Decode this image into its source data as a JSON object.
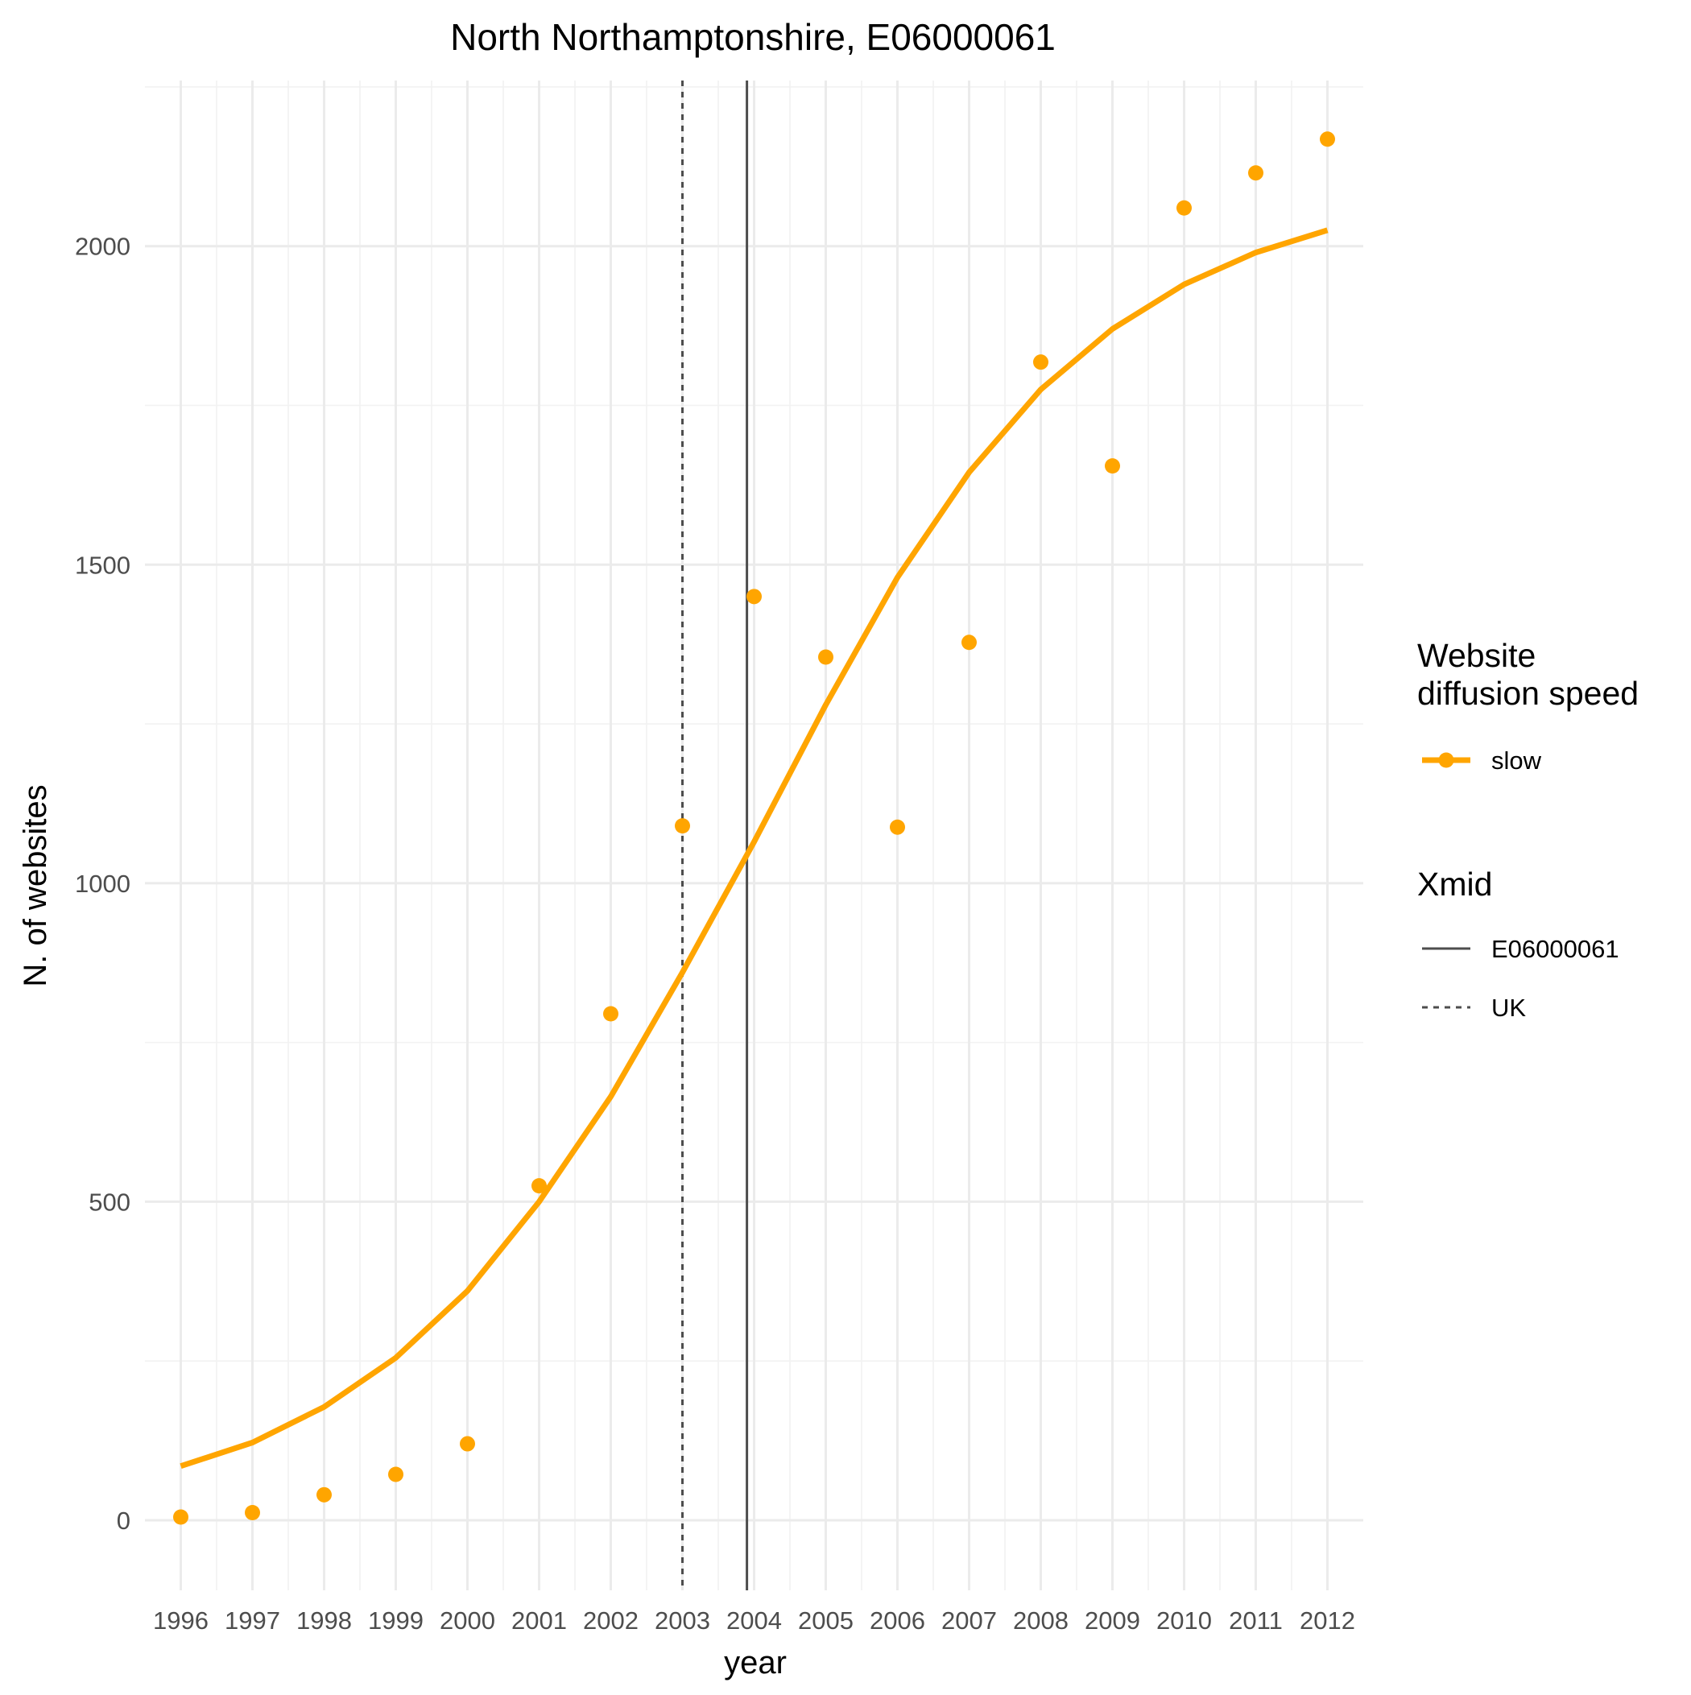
{
  "chart_data": {
    "type": "line",
    "title": "North Northamptonshire, E06000061",
    "xlabel": "year",
    "ylabel": "N. of websites",
    "x": [
      1996,
      1997,
      1998,
      1999,
      2000,
      2001,
      2002,
      2003,
      2004,
      2005,
      2006,
      2007,
      2008,
      2009,
      2010,
      2011,
      2012
    ],
    "x_tick_labels": [
      "1996",
      "1997",
      "1998",
      "1999",
      "2000",
      "2001",
      "2002",
      "2003",
      "2004",
      "2005",
      "2006",
      "2007",
      "2008",
      "2009",
      "2010",
      "2011",
      "2012"
    ],
    "y_ticks": [
      0,
      500,
      1000,
      1500,
      2000
    ],
    "y_tick_labels": [
      "0",
      "500",
      "1000",
      "1500",
      "2000"
    ],
    "xlim": [
      1995.5,
      2012.5
    ],
    "ylim": [
      -110,
      2260
    ],
    "grid": true,
    "series": [
      {
        "name": "slow",
        "kind": "points",
        "color": "#FFA500",
        "values": [
          5,
          12,
          40,
          72,
          120,
          525,
          795,
          1090,
          1450,
          1355,
          1088,
          1378,
          1818,
          1655,
          2060,
          2115,
          2168
        ]
      },
      {
        "name": "slow",
        "kind": "fitted-line",
        "color": "#FFA500",
        "values": [
          85,
          122,
          178,
          255,
          360,
          500,
          665,
          860,
          1065,
          1280,
          1480,
          1645,
          1775,
          1870,
          1940,
          1990,
          2025
        ]
      }
    ],
    "reference_lines": [
      {
        "name": "E06000061",
        "x": 2003.9,
        "style": "solid",
        "color": "#4d4d4d"
      },
      {
        "name": "UK",
        "x": 2003.0,
        "style": "dotted",
        "color": "#4d4d4d"
      }
    ],
    "legend": {
      "placement": "right",
      "groups": [
        {
          "title_lines": [
            "Website",
            "diffusion speed"
          ],
          "entries": [
            {
              "label": "slow",
              "style": "line-point",
              "color": "#FFA500"
            }
          ]
        },
        {
          "title_lines": [
            "Xmid"
          ],
          "entries": [
            {
              "label": "E06000061",
              "style": "solid"
            },
            {
              "label": "UK",
              "style": "dotted"
            }
          ]
        }
      ]
    }
  }
}
